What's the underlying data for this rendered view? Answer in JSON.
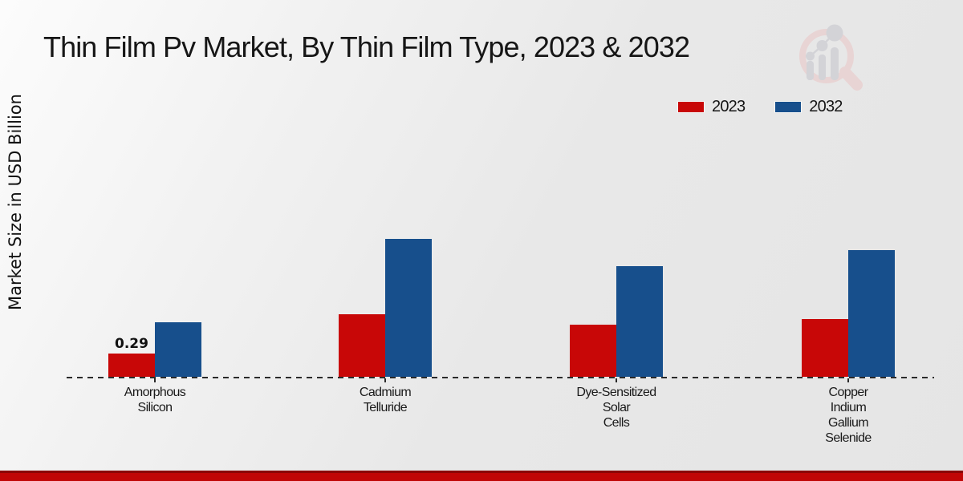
{
  "title": "Thin Film Pv Market, By Thin Film Type, 2023 & 2032",
  "y_axis_label": "Market Size in USD Billion",
  "legend": {
    "items": [
      {
        "label": "2023",
        "color": "#c80707"
      },
      {
        "label": "2032",
        "color": "#174f8c"
      }
    ]
  },
  "chart_data": {
    "type": "bar",
    "title": "Thin Film Pv Market, By Thin Film Type, 2023 & 2032",
    "xlabel": "",
    "ylabel": "Market Size in USD Billion",
    "categories": [
      "Amorphous Silicon",
      "Cadmium Telluride",
      "Dye-Sensitized Solar Cells",
      "Copper Indium Gallium Selenide"
    ],
    "series": [
      {
        "name": "2023",
        "color": "#c80707",
        "values": [
          0.29,
          0.78,
          0.65,
          0.72
        ]
      },
      {
        "name": "2032",
        "color": "#174f8c",
        "values": [
          0.68,
          1.72,
          1.38,
          1.58
        ]
      }
    ],
    "annotations": [
      {
        "series_index": 0,
        "category_index": 0,
        "text": "0.29"
      }
    ],
    "ylim": [
      0,
      2.0
    ],
    "grid": false,
    "legend_position": "top-right",
    "x_axis_style": "dashed",
    "y_axis_ticks_visible": false
  },
  "footer": {
    "bar_color": "#c00606",
    "bar_top_color": "#8a0606"
  },
  "watermark": {
    "name": "market-research-chart-magnifier-logo",
    "ring_color": "#e9d3d3",
    "bars_color": "#d2d2d7"
  }
}
